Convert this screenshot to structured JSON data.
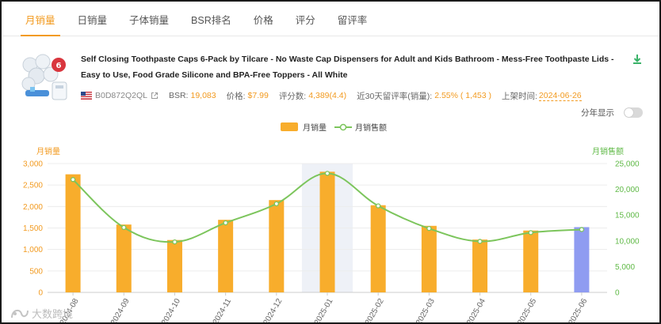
{
  "tabs": [
    {
      "label": "月销量",
      "active": true
    },
    {
      "label": "日销量",
      "active": false
    },
    {
      "label": "子体销量",
      "active": false
    },
    {
      "label": "BSR排名",
      "active": false
    },
    {
      "label": "价格",
      "active": false
    },
    {
      "label": "评分",
      "active": false
    },
    {
      "label": "留评率",
      "active": false
    }
  ],
  "product": {
    "title": "Self Closing Toothpaste Caps 6-Pack by Tilcare - No Waste Cap Dispensers for Adult and Kids Bathroom - Mess-Free Toothpaste Lids - Easy to Use, Food Grade Silicone and BPA-Free Toppers - All White",
    "asin": "B0D872Q2QL",
    "bsr_label": "BSR:",
    "bsr_value": "19,083",
    "price_label": "价格:",
    "price_value": "$7.99",
    "reviews_label": "评分数:",
    "reviews_value": "4,389(4.4)",
    "review_rate_label": "近30天留评率(销量):",
    "review_rate_value": "2.55% ( 1,453 )",
    "launch_label": "上架时间:",
    "launch_value": "2024-06-26",
    "icons": {
      "flag": "us-flag-icon",
      "external": "external-link-icon",
      "download": "download-icon"
    }
  },
  "toggle": {
    "label": "分年显示",
    "on": false
  },
  "watermark": "大数跨境",
  "colors": {
    "accent": "#f29a1f",
    "bar": "#f8ad2c",
    "bar_current": "#8f9cf1",
    "line": "#7cc55c",
    "right_axis": "#5fb946"
  },
  "chart_data": {
    "type": "bar",
    "categories": [
      "2024-08",
      "2024-09",
      "2024-10",
      "2024-11",
      "2024-12",
      "2025-01",
      "2025-02",
      "2025-03",
      "2025-04",
      "2025-05",
      "2025-06"
    ],
    "series": [
      {
        "name": "月销量",
        "type": "bar",
        "axis": "left",
        "values": [
          2750,
          1580,
          1220,
          1690,
          2150,
          2810,
          2030,
          1550,
          1230,
          1440,
          1520
        ]
      },
      {
        "name": "月销售额",
        "type": "line",
        "axis": "right",
        "values": [
          21900,
          12600,
          9800,
          13500,
          17200,
          23100,
          16800,
          12400,
          9900,
          11600,
          12200
        ]
      }
    ],
    "highlight_category": "2025-01",
    "current_category": "2025-06",
    "ylabel": "月销量",
    "y2label": "月销售额",
    "ylim": [
      0,
      3000
    ],
    "y2lim": [
      0,
      25000
    ],
    "yticks": [
      "0",
      "500",
      "1,000",
      "1,500",
      "2,000",
      "2,500",
      "3,000"
    ],
    "y2ticks": [
      "0",
      "5,000",
      "10,000",
      "15,000",
      "20,000",
      "25,000"
    ],
    "grid": true,
    "legend": "top-center"
  }
}
